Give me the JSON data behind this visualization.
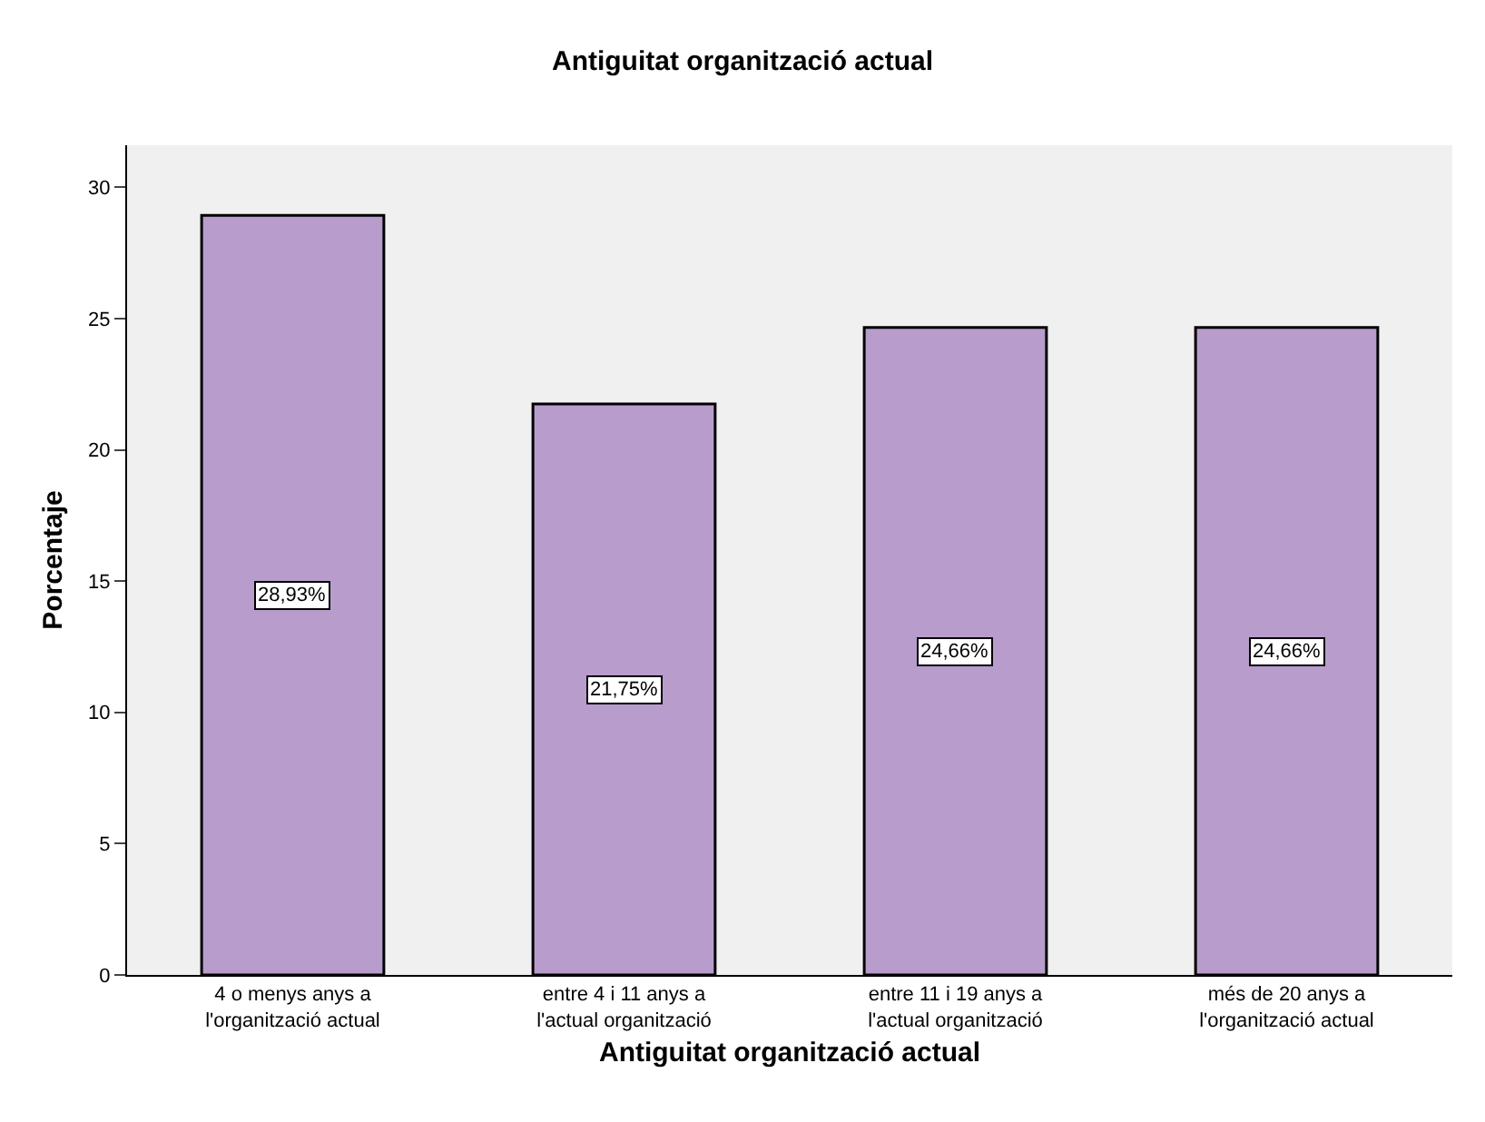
{
  "chart_data": {
    "type": "bar",
    "title": "Antiguitat organització actual",
    "xlabel": "Antiguitat organització actual",
    "ylabel": "Porcentaje",
    "categories": [
      "4 o menys anys a\nl'organització actual",
      "entre 4 i 11 anys a\nl'actual organització",
      "entre 11 i 19 anys a\nl'actual organització",
      "més de 20 anys a\nl'organització actual"
    ],
    "values": [
      28.93,
      21.75,
      24.66,
      24.66
    ],
    "value_labels": [
      "28,93%",
      "21,75%",
      "24,66%",
      "24,66%"
    ],
    "color": "#b89ccc",
    "ylim": [
      0,
      31.6
    ],
    "yticks": [
      0,
      5,
      10,
      15,
      20,
      25,
      30
    ],
    "grid": false,
    "legend": false
  }
}
